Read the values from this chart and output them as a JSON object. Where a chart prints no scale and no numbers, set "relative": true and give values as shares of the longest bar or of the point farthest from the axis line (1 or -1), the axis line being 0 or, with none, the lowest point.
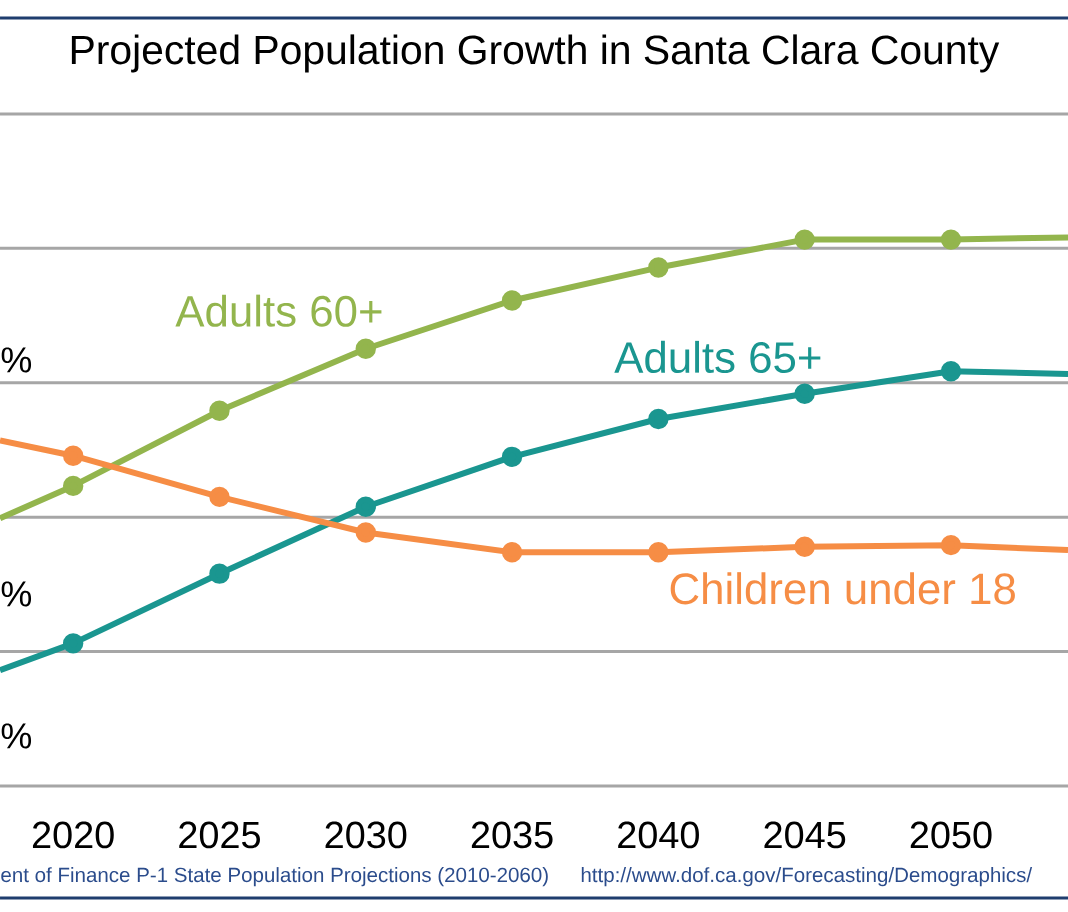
{
  "chart_data": {
    "type": "line",
    "title": "Projected Population Growth in Santa Clara County",
    "annotations": [
      "%",
      "%",
      "%",
      "ent of Finance P-1 State Population Projections (2010-2060)",
      "http://www.dof.ca.gov/Forecasting/Demographics/"
    ],
    "x": [
      2017.5,
      2020,
      2025,
      2030,
      2035,
      2040,
      2045,
      2050,
      2054
    ],
    "xlim": [
      2017.5,
      2054
    ],
    "xticks": [
      2020,
      2025,
      2030,
      2035,
      2040,
      2045,
      2050
    ],
    "relative": true,
    "grid": "y",
    "marker": "circle",
    "series": [
      {
        "name": "Adults 60+",
        "color": "#93b54d",
        "values": [
          0.488,
          0.547,
          0.684,
          0.797,
          0.885,
          0.945,
          0.996,
          0.996,
          1.0
        ]
      },
      {
        "name": "Adults 65+",
        "color": "#1a9690",
        "values": [
          0.211,
          0.26,
          0.387,
          0.509,
          0.6,
          0.669,
          0.715,
          0.756,
          0.751
        ]
      },
      {
        "name": "Children under 18",
        "color": "#f68d45",
        "values": [
          0.63,
          0.602,
          0.527,
          0.462,
          0.426,
          0.426,
          0.436,
          0.439,
          0.43
        ]
      }
    ]
  }
}
